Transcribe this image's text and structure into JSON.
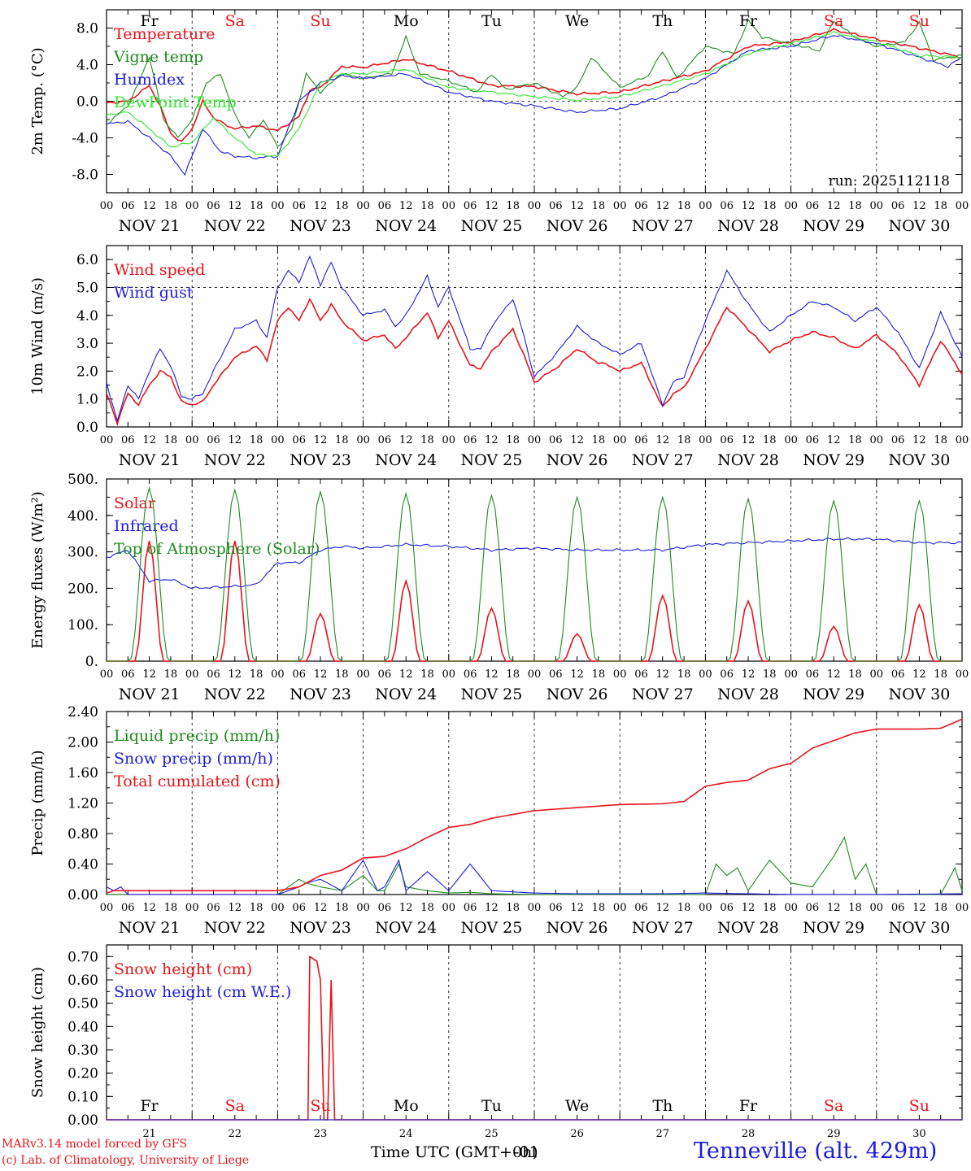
{
  "run_label": "run: 2025112118",
  "day_abbr": [
    "Fr",
    "Sa",
    "Su",
    "Mo",
    "Tu",
    "We",
    "Th",
    "Fr",
    "Sa",
    "Su"
  ],
  "day_abbr_colors": [
    "#000000",
    "#e8141b",
    "#e8141b",
    "#000000",
    "#000000",
    "#000000",
    "#000000",
    "#000000",
    "#e8141b",
    "#e8141b"
  ],
  "date_labels": [
    "NOV 21",
    "NOV 22",
    "NOV 23",
    "NOV 24",
    "NOV 25",
    "NOV 26",
    "NOV 27",
    "NOV 28",
    "NOV 29",
    "NOV 30"
  ],
  "hour_ticks": [
    "00",
    "06",
    "12",
    "18"
  ],
  "bottom_day_numbers": [
    "21",
    "22",
    "23",
    "24",
    "25",
    "26",
    "27",
    "28",
    "29",
    "30"
  ],
  "xlabel": "Time UTC (GMT+0h)",
  "xlabel_overlap": "-01",
  "footer": {
    "model": "MARv3.14 model forced by GFS",
    "copyright": "(c) Lab. of Climatology, University of Liege",
    "station": "Tenneville (alt. 429m)"
  },
  "colors": {
    "red": "#e8141b",
    "blue": "#1c1cdc",
    "green": "#1f8a1f",
    "lightgreen": "#2ee82e"
  },
  "chart_data": [
    {
      "type": "line",
      "ylabel": "2m Temp. (°C)",
      "ylim": [
        -10,
        10
      ],
      "yticks": [
        -8,
        -4,
        0,
        4,
        8
      ],
      "ytick_labels": [
        "-8.0",
        "-4.0",
        "0.0",
        "4.0",
        "8.0"
      ],
      "dashed_y": [
        0
      ],
      "x_unit": "hours since Nov 21 00 UTC",
      "series": [
        {
          "name": "Temperature",
          "color": "#e8141b",
          "x": [
            0,
            6,
            12,
            15,
            18,
            21,
            24,
            27,
            30,
            33,
            36,
            42,
            48,
            54,
            57,
            60,
            66,
            72,
            84,
            96,
            108,
            120,
            132,
            144,
            156,
            168,
            180,
            192,
            204,
            216,
            228,
            240
          ],
          "y": [
            -0.2,
            0,
            1.7,
            -0.5,
            -3.5,
            -4.5,
            -3,
            0,
            -1.8,
            -2.5,
            -3,
            -2.7,
            -3.2,
            -1.7,
            1.2,
            1.5,
            3.8,
            3.7,
            4.6,
            3.3,
            1.7,
            1.6,
            0.8,
            1,
            2.2,
            3.3,
            6,
            6.5,
            7.8,
            6.8,
            5.8,
            4.8
          ]
        },
        {
          "name": "Vigne temp",
          "color": "#1f8a1f",
          "x": [
            0,
            6,
            9,
            12,
            16,
            20,
            24,
            28,
            32,
            36,
            40,
            44,
            48,
            52,
            56,
            60,
            63,
            66,
            72,
            80,
            84,
            88,
            96,
            104,
            108,
            112,
            120,
            128,
            132,
            136,
            144,
            152,
            156,
            160,
            168,
            176,
            180,
            184,
            192,
            200,
            204,
            210,
            216,
            224,
            228,
            232,
            240
          ],
          "y": [
            -2.5,
            -0.5,
            2,
            4.9,
            -2,
            -4,
            -2,
            2,
            3,
            -1.5,
            -4,
            -2,
            -5,
            -3,
            3,
            1,
            2,
            3,
            2.5,
            3,
            7,
            3,
            2.2,
            1,
            3,
            1.3,
            2,
            0.5,
            1.5,
            4.8,
            1.5,
            2.8,
            5.5,
            2.5,
            6,
            5.2,
            8.8,
            7,
            6.3,
            5.5,
            8.8,
            7,
            6,
            6.5,
            8.6,
            4.5,
            5
          ]
        },
        {
          "name": "Humidex",
          "color": "#1c1cdc",
          "x": [
            0,
            6,
            12,
            18,
            22,
            27,
            32,
            36,
            42,
            48,
            54,
            60,
            66,
            72,
            84,
            96,
            108,
            120,
            132,
            144,
            156,
            168,
            180,
            192,
            204,
            216,
            228,
            236,
            240
          ],
          "y": [
            -2.5,
            -2.2,
            -4,
            -6,
            -8,
            -3,
            -5.5,
            -6,
            -6.2,
            -6,
            0,
            2,
            2.8,
            2.5,
            3,
            1,
            0,
            -0.5,
            -1.2,
            -0.8,
            0.5,
            2.5,
            5.5,
            6,
            7.2,
            6.3,
            4.8,
            3.8,
            4.8
          ]
        },
        {
          "name": "DewPoint Temp",
          "color": "#2ee82e",
          "x": [
            0,
            6,
            12,
            18,
            24,
            30,
            36,
            42,
            48,
            54,
            60,
            66,
            72,
            84,
            96,
            108,
            120,
            132,
            144,
            156,
            168,
            180,
            192,
            204,
            216,
            228,
            240
          ],
          "y": [
            -1.5,
            -1.2,
            -3,
            -5,
            -4.5,
            -1.8,
            -4,
            -5.8,
            -6,
            -3,
            2,
            3,
            3,
            3.5,
            1.5,
            1,
            0.5,
            0.1,
            0.5,
            1.7,
            3,
            5.2,
            6.3,
            7.5,
            6.5,
            5,
            4.8
          ]
        }
      ]
    },
    {
      "type": "line",
      "ylabel": "10m Wind (m/s)",
      "ylim": [
        0,
        6.5
      ],
      "yticks": [
        0,
        1,
        2,
        3,
        4,
        5,
        6
      ],
      "ytick_labels": [
        "0.0",
        "1.0",
        "2.0",
        "3.0",
        "4.0",
        "5.0",
        "6.0"
      ],
      "dashed_y": [
        5
      ],
      "series": [
        {
          "name": "Wind speed",
          "color": "#e8141b",
          "x": [
            0,
            3,
            6,
            9,
            12,
            15,
            18,
            21,
            24,
            27,
            30,
            36,
            42,
            45,
            48,
            51,
            54,
            57,
            60,
            63,
            66,
            72,
            78,
            81,
            84,
            90,
            93,
            96,
            102,
            105,
            108,
            114,
            117,
            120,
            126,
            132,
            138,
            141,
            144,
            150,
            156,
            159,
            162,
            168,
            174,
            180,
            186,
            192,
            198,
            204,
            210,
            216,
            222,
            228,
            234,
            240
          ],
          "y": [
            1.2,
            0.15,
            1.2,
            0.8,
            1.5,
            2,
            1.8,
            0.9,
            0.8,
            0.9,
            1.5,
            2.5,
            2.9,
            2.4,
            3.8,
            4.3,
            3.8,
            4.6,
            3.8,
            4.4,
            3.8,
            3.1,
            3.3,
            2.8,
            3.2,
            4.1,
            3.2,
            3.8,
            2.2,
            2.1,
            2.7,
            3.5,
            2.6,
            1.6,
            2.1,
            2.8,
            2.3,
            2.2,
            2,
            2.3,
            0.7,
            1.2,
            1.4,
            2.8,
            4.3,
            3.5,
            2.7,
            3.1,
            3.4,
            3.2,
            2.8,
            3.3,
            2.6,
            1.5,
            3.1,
            1.9
          ]
        },
        {
          "name": "Wind gust",
          "color": "#1c1cdc",
          "x": [
            0,
            3,
            6,
            9,
            12,
            15,
            18,
            21,
            24,
            27,
            30,
            36,
            42,
            45,
            48,
            51,
            54,
            57,
            60,
            63,
            66,
            72,
            78,
            81,
            84,
            90,
            93,
            96,
            102,
            105,
            108,
            114,
            117,
            120,
            126,
            132,
            138,
            141,
            144,
            150,
            156,
            159,
            162,
            168,
            174,
            180,
            186,
            192,
            198,
            204,
            210,
            216,
            222,
            228,
            234,
            240
          ],
          "y": [
            1.6,
            0.2,
            1.5,
            1,
            2,
            2.8,
            2.2,
            1.1,
            1,
            1.2,
            2,
            3.5,
            3.8,
            3.2,
            5,
            5.6,
            5.2,
            6.1,
            5.1,
            5.9,
            5,
            4,
            4.2,
            3.6,
            4,
            5.4,
            4.3,
            5,
            2.8,
            2.8,
            3.6,
            4.6,
            3.3,
            1.8,
            2.6,
            3.6,
            3,
            2.8,
            2.6,
            3,
            0.8,
            1.6,
            1.8,
            3.8,
            5.6,
            4.4,
            3.4,
            4,
            4.5,
            4.3,
            3.8,
            4.3,
            3.4,
            2.1,
            4.1,
            2.5
          ]
        }
      ]
    },
    {
      "type": "line",
      "ylabel": "Energy fluxes (W/m²)",
      "ylim": [
        0,
        500
      ],
      "yticks": [
        0,
        100,
        200,
        300,
        400,
        500
      ],
      "ytick_labels": [
        "0.",
        "100.",
        "200.",
        "300.",
        "400.",
        "500."
      ],
      "series": [
        {
          "name": "Solar",
          "color": "#e8141b",
          "peaks_x": [
            12,
            36,
            60,
            84,
            108,
            132,
            156,
            180,
            204,
            228
          ],
          "peaks_y": [
            330,
            330,
            130,
            220,
            145,
            75,
            180,
            165,
            95,
            155
          ]
        },
        {
          "name": "Infrared",
          "color": "#1c1cdc",
          "x": [
            0,
            6,
            12,
            18,
            24,
            36,
            42,
            48,
            54,
            60,
            66,
            72,
            84,
            96,
            108,
            120,
            132,
            144,
            156,
            168,
            180,
            192,
            204,
            216,
            228,
            240
          ],
          "y": [
            285,
            305,
            220,
            225,
            200,
            205,
            210,
            270,
            270,
            305,
            315,
            310,
            320,
            315,
            305,
            310,
            305,
            305,
            305,
            320,
            325,
            330,
            335,
            335,
            325,
            325
          ]
        },
        {
          "name": "Top of Atmosphere (Solar)",
          "color": "#1f8a1f",
          "peaks_x": [
            12,
            36,
            60,
            84,
            108,
            132,
            156,
            180,
            204,
            228
          ],
          "peaks_y": [
            475,
            470,
            465,
            460,
            455,
            450,
            450,
            445,
            440,
            440
          ]
        }
      ]
    },
    {
      "type": "line",
      "ylabel": "Precip (mm/h)",
      "ylim": [
        0,
        2.4
      ],
      "yticks": [
        0,
        0.4,
        0.8,
        1.2,
        1.6,
        2.0,
        2.4
      ],
      "ytick_labels": [
        "0.00",
        "0.40",
        "0.80",
        "1.20",
        "1.60",
        "2.00",
        "2.40"
      ],
      "series": [
        {
          "name": "Liquid precip (mm/h)",
          "color": "#1f8a1f",
          "x": [
            0,
            48,
            54,
            56,
            60,
            66,
            72,
            76,
            78,
            82,
            84,
            90,
            96,
            102,
            108,
            120,
            144,
            168,
            171,
            174,
            177,
            180,
            186,
            192,
            198,
            204,
            207,
            210,
            213,
            216,
            222,
            228,
            234,
            238,
            240
          ],
          "y": [
            0,
            0,
            0.2,
            0.15,
            0.1,
            0.05,
            0.25,
            0.05,
            0.05,
            0.4,
            0.1,
            0.05,
            0.02,
            0.03,
            0.01,
            0,
            0,
            0,
            0.4,
            0.25,
            0.35,
            0.05,
            0.45,
            0.15,
            0.1,
            0.5,
            0.75,
            0.2,
            0.4,
            0,
            0,
            0,
            0,
            0.35,
            0.05
          ]
        },
        {
          "name": "Snow precip (mm/h)",
          "color": "#1c1cdc",
          "x": [
            0,
            2,
            4,
            6,
            24,
            48,
            54,
            56,
            60,
            66,
            72,
            76,
            78,
            82,
            84,
            90,
            96,
            102,
            108,
            120,
            132,
            144,
            156,
            168,
            192,
            216,
            240
          ],
          "y": [
            0.1,
            0.05,
            0.1,
            0,
            0,
            0,
            0.1,
            0.15,
            0.2,
            0.05,
            0.45,
            0.05,
            0.1,
            0.45,
            0.05,
            0.3,
            0.05,
            0.4,
            0.05,
            0.02,
            0.01,
            0.01,
            0.01,
            0.02,
            0,
            0,
            0.01
          ]
        },
        {
          "name": "Total cumulated (cm)",
          "color": "#e8141b",
          "x": [
            0,
            2,
            48,
            54,
            60,
            66,
            72,
            78,
            84,
            90,
            96,
            102,
            108,
            114,
            120,
            132,
            144,
            156,
            162,
            168,
            174,
            180,
            186,
            192,
            198,
            204,
            210,
            216,
            228,
            234,
            240
          ],
          "y": [
            0.02,
            0.05,
            0.05,
            0.1,
            0.25,
            0.32,
            0.48,
            0.5,
            0.6,
            0.75,
            0.88,
            0.92,
            1,
            1.05,
            1.1,
            1.14,
            1.18,
            1.19,
            1.22,
            1.42,
            1.47,
            1.5,
            1.65,
            1.72,
            1.92,
            2.02,
            2.12,
            2.17,
            2.17,
            2.18,
            2.3
          ]
        }
      ]
    },
    {
      "type": "line",
      "ylabel": "Snow height (cm)",
      "ylim": [
        0,
        0.75
      ],
      "yticks": [
        0,
        0.1,
        0.2,
        0.3,
        0.4,
        0.5,
        0.6,
        0.7
      ],
      "ytick_labels": [
        "0.00",
        "0.10",
        "0.20",
        "0.30",
        "0.40",
        "0.50",
        "0.60",
        "0.70"
      ],
      "series": [
        {
          "name": "Snow height (cm)",
          "color": "#e8141b",
          "x": [
            0,
            56.5,
            57,
            59,
            60,
            61,
            62,
            63,
            64,
            65,
            240
          ],
          "y": [
            0,
            0,
            0.7,
            0.68,
            0.6,
            0,
            0,
            0.6,
            0,
            0,
            0
          ]
        },
        {
          "name": "Snow height (cm W.E.)",
          "color": "#1c1cdc",
          "x": [
            0,
            240
          ],
          "y": [
            0,
            0
          ]
        }
      ]
    }
  ]
}
